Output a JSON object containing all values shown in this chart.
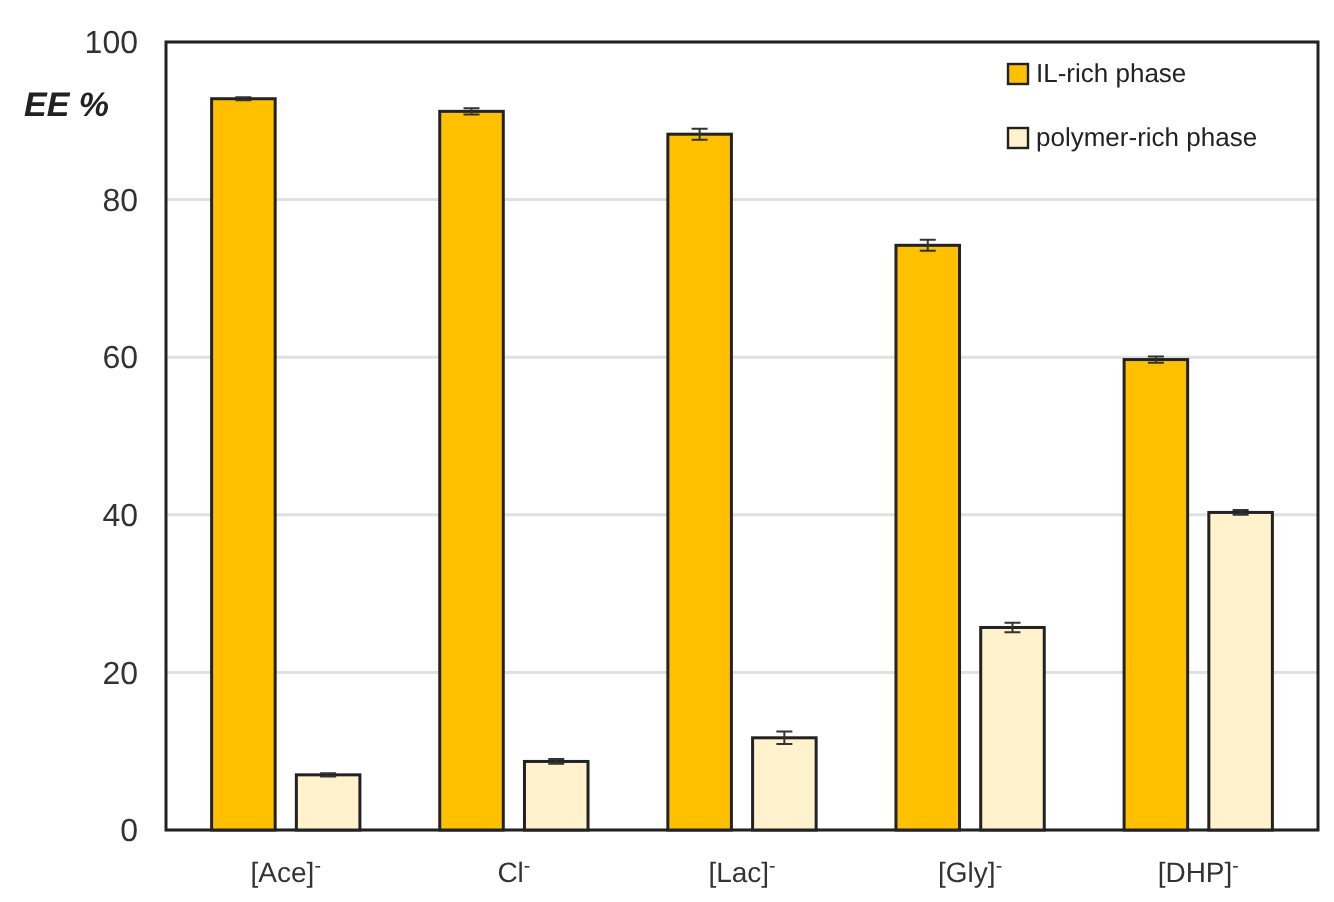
{
  "chart_data": {
    "type": "bar",
    "ylabel": "EE %",
    "categories": [
      "[Ace]$^{-}$",
      "Cl$^{-}$",
      "[Lac]$^{-}$",
      "[Gly]$^{-}$",
      "[DHP]$^{-}$"
    ],
    "series": [
      {
        "name": "IL-rich phase",
        "color": "#ffc000",
        "values": [
          92.8,
          91.2,
          88.3,
          74.2,
          59.7
        ],
        "errors": [
          0.2,
          0.4,
          0.7,
          0.7,
          0.4
        ]
      },
      {
        "name": "polymer-rich phase",
        "color": "#fff2cc",
        "values": [
          7.0,
          8.7,
          11.7,
          25.7,
          40.3
        ],
        "errors": [
          0.2,
          0.3,
          0.8,
          0.6,
          0.3
        ]
      }
    ],
    "ylim": [
      0,
      100
    ],
    "yticks": [
      0,
      20,
      40,
      60,
      80,
      100
    ],
    "grid": "y",
    "legend": "top right"
  }
}
